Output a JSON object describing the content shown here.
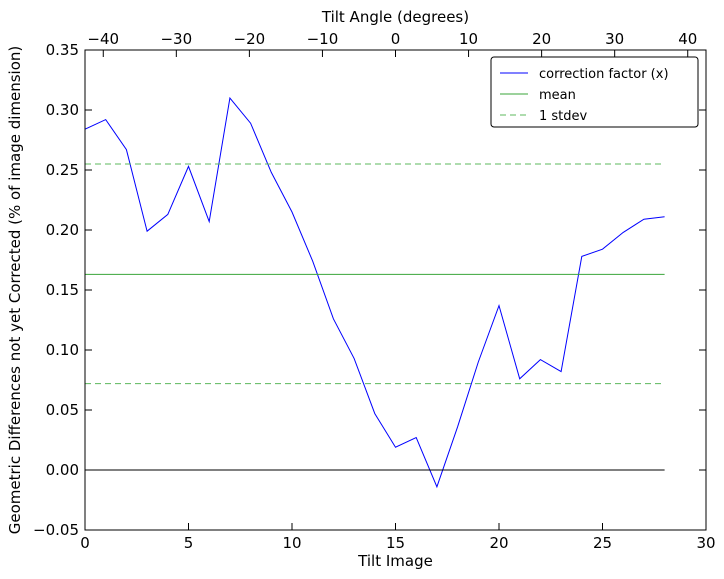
{
  "chart_data": {
    "type": "line",
    "xlabel": "Tilt Image",
    "ylabel": "Geometric Differences not yet Corrected (% of image dimension)",
    "top_xlabel": "Tilt Angle (degrees)",
    "xlim": [
      0,
      30
    ],
    "ylim": [
      -0.05,
      0.35
    ],
    "top_xlim": [
      -42.5,
      42.5
    ],
    "x_ticks": [
      0,
      5,
      10,
      15,
      20,
      25,
      30
    ],
    "x_tick_labels": [
      "0",
      "5",
      "10",
      "15",
      "20",
      "25",
      "30"
    ],
    "y_ticks": [
      -0.05,
      0.0,
      0.05,
      0.1,
      0.15,
      0.2,
      0.25,
      0.3,
      0.35
    ],
    "y_tick_labels": [
      "−0.05",
      "0.00",
      "0.05",
      "0.10",
      "0.15",
      "0.20",
      "0.25",
      "0.30",
      "0.35"
    ],
    "top_ticks": [
      -40,
      -30,
      -20,
      -10,
      0,
      10,
      20,
      30,
      40
    ],
    "top_tick_labels": [
      "−40",
      "−30",
      "−20",
      "−10",
      "0",
      "10",
      "20",
      "30",
      "40"
    ],
    "grid": false,
    "legend_position": "top-right",
    "series": [
      {
        "name": "correction factor (x)",
        "color": "#0000ff",
        "style": "solid",
        "x": [
          0,
          1,
          2,
          3,
          4,
          5,
          6,
          7,
          8,
          9,
          10,
          11,
          12,
          13,
          14,
          15,
          16,
          17,
          18,
          19,
          20,
          21,
          22,
          23,
          24,
          25,
          26,
          27,
          28
        ],
        "y": [
          0.284,
          0.292,
          0.267,
          0.199,
          0.213,
          0.253,
          0.207,
          0.31,
          0.289,
          0.248,
          0.215,
          0.174,
          0.126,
          0.093,
          0.047,
          0.019,
          0.027,
          -0.014,
          0.036,
          0.09,
          0.137,
          0.076,
          0.092,
          0.082,
          0.178,
          0.184,
          0.198,
          0.209,
          0.211
        ]
      },
      {
        "name": "mean",
        "color": "#3aa43a",
        "style": "solid",
        "x": [
          0,
          28
        ],
        "y": [
          0.163,
          0.163
        ]
      },
      {
        "name": "1 stdev",
        "color": "#5cb85c",
        "style": "dashed",
        "x": [
          0,
          28
        ],
        "y": [
          0.255,
          0.255
        ]
      },
      {
        "name": "",
        "color": "#5cb85c",
        "style": "dashed",
        "x": [
          0,
          28
        ],
        "y": [
          0.072,
          0.072
        ]
      },
      {
        "name": "",
        "color": "#000000",
        "style": "solid",
        "x": [
          0,
          28
        ],
        "y": [
          0.0,
          0.0
        ]
      }
    ],
    "legend": [
      {
        "label": "correction factor (x)",
        "color": "#0000ff",
        "style": "solid"
      },
      {
        "label": "mean",
        "color": "#3aa43a",
        "style": "solid"
      },
      {
        "label": "1 stdev",
        "color": "#5cb85c",
        "style": "dashed"
      }
    ]
  }
}
